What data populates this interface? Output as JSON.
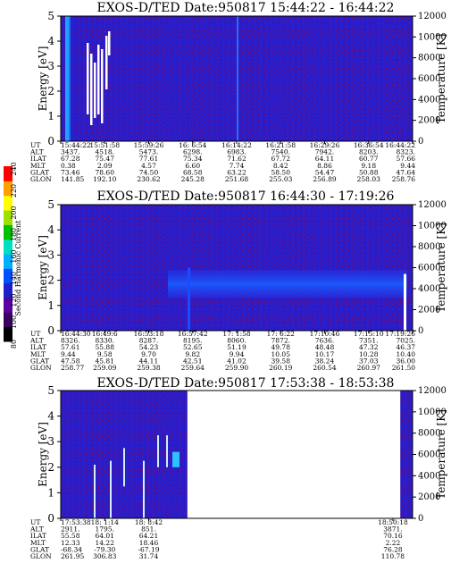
{
  "chart_data": {
    "type": "heatmap",
    "colorbar": {
      "label": "Second Harmonic Current",
      "ticks": [
        "80",
        "100",
        "120",
        "140",
        "160",
        "180",
        "200",
        "220",
        "240"
      ],
      "range": [
        80,
        240
      ],
      "colors": [
        "#000000",
        "#3a0060",
        "#5a00a0",
        "#2020c8",
        "#0050ff",
        "#00b0ff",
        "#00e0c0",
        "#00c000",
        "#a0e000",
        "#ffff00",
        "#ffa000",
        "#ff0000"
      ]
    },
    "panels": [
      {
        "title": "EXOS-D/TED   Date:950817   15:44:22 - 16:44:22",
        "ylabel": "Energy [eV]",
        "y2label": "Temperature [K]",
        "ylim": [
          0,
          5
        ],
        "y2lim": [
          0,
          12000
        ],
        "yticks": [
          "0",
          "1",
          "2",
          "3",
          "4",
          "5"
        ],
        "y2ticks": [
          "0",
          "2000",
          "4000",
          "6000",
          "8000",
          "10000",
          "12000"
        ],
        "data_extent": [
          0,
          1
        ],
        "ephemeris_labels": [
          "UT",
          "ALT",
          "ILAT",
          "MLT",
          "GLAT",
          "GLON"
        ],
        "ephemeris": [
          [
            "15:44:22",
            "3437.",
            "67.28",
            "0.38",
            "73.46",
            "141.85"
          ],
          [
            "15:51:58",
            "4518.",
            "75.47",
            "2.09",
            "78.60",
            "192.10"
          ],
          [
            "15:59:26",
            "5473.",
            "77.61",
            "4.57",
            "74.50",
            "230.62"
          ],
          [
            "16: 6:54",
            "6298.",
            "75.34",
            "6.60",
            "68.58",
            "245.28"
          ],
          [
            "16:14:22",
            "6983.",
            "71.62",
            "7.74",
            "63.22",
            "251.68"
          ],
          [
            "16:21:58",
            "7540.",
            "67.72",
            "8.42",
            "58.50",
            "255.03"
          ],
          [
            "16:29:26",
            "7942.",
            "64.11",
            "8.86",
            "54.47",
            "256.89"
          ],
          [
            "16:36:54",
            "8203.",
            "60.77",
            "9.18",
            "50.88",
            "258.03"
          ],
          [
            "16:44:22",
            "8323.",
            "57.66",
            "9.44",
            "47.64",
            "258.76"
          ]
        ]
      },
      {
        "title": "EXOS-D/TED   Date:950817   16:44:30 - 17:19:26",
        "ylabel": "Energy [eV]",
        "y2label": "Temperature [K]",
        "ylim": [
          0,
          5
        ],
        "y2lim": [
          0,
          12000
        ],
        "yticks": [
          "0",
          "1",
          "2",
          "3",
          "4",
          "5"
        ],
        "y2ticks": [
          "0",
          "2000",
          "4000",
          "6000",
          "8000",
          "10000",
          "12000"
        ],
        "data_extent": [
          0,
          1
        ],
        "ephemeris_labels": [
          "UT",
          "ALT",
          "ILAT",
          "MLT",
          "GLAT",
          "GLON"
        ],
        "ephemeris": [
          [
            "16:44:30",
            "8326.",
            "57.61",
            "9.44",
            "47.58",
            "258.77"
          ],
          [
            "16:49:6",
            "8330.",
            "55.88",
            "9.58",
            "45.81",
            "259.09"
          ],
          [
            "16:53:18",
            "8287.",
            "54.23",
            "9.70",
            "44.11",
            "259.38"
          ],
          [
            "16:57:42",
            "8195.",
            "52.65",
            "9.82",
            "42.51",
            "259.64"
          ],
          [
            "17: 1:58",
            "8060.",
            "51.19",
            "9.94",
            "41.02",
            "259.90"
          ],
          [
            "17: 6:22",
            "7872.",
            "49.78",
            "10.05",
            "39.58",
            "260.19"
          ],
          [
            "17:10:46",
            "7636.",
            "48.48",
            "10.17",
            "38.24",
            "260.54"
          ],
          [
            "17:15:10",
            "7351.",
            "47.32",
            "10.28",
            "37.03",
            "260.97"
          ],
          [
            "17:19:26",
            "7025.",
            "46.37",
            "10.40",
            "36.00",
            "261.50"
          ]
        ]
      },
      {
        "title": "EXOS-D/TED   Date:950817   17:53:38 - 18:53:38",
        "ylabel": "Energy [eV]",
        "y2label": "Temperature [K]",
        "ylim": [
          0,
          5
        ],
        "y2lim": [
          0,
          12000
        ],
        "yticks": [
          "0",
          "1",
          "2",
          "3",
          "4",
          "5"
        ],
        "y2ticks": [
          "0",
          "2000",
          "4000",
          "6000",
          "8000",
          "10000",
          "12000"
        ],
        "data_extent": [
          0,
          0.36
        ],
        "data_extent2": [
          0.965,
          1
        ],
        "ephemeris_labels": [
          "UT",
          "ALT",
          "ILAT",
          "MLT",
          "GLAT",
          "GLON"
        ],
        "ephemeris": [
          [
            "17:53:38",
            "2911.",
            "55.58",
            "12.33",
            "-68.34",
            "261.95"
          ],
          [
            "18: 1:14",
            "1795.",
            "64.01",
            "14.22",
            "-79.30",
            "306.83"
          ],
          [
            "18: 8:42",
            "851.",
            "64.21",
            "18.46",
            "-67.19",
            "31.74"
          ],
          [
            "18:50:18",
            "3871.",
            "70.16",
            "2.22",
            "76.28",
            "110.78"
          ]
        ],
        "ephemeris_positions": [
          0,
          0.125,
          0.25,
          0.944
        ]
      }
    ]
  }
}
